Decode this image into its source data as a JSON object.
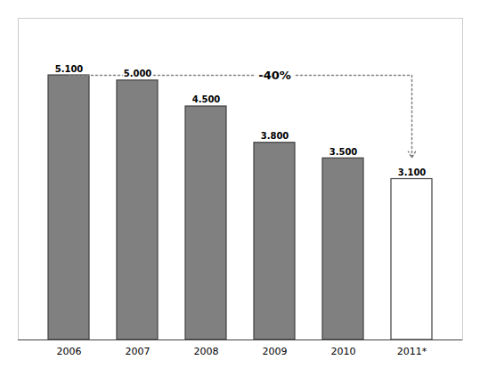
{
  "chart_data": {
    "type": "bar",
    "categories": [
      "2006",
      "2007",
      "2008",
      "2009",
      "2010",
      "2011*"
    ],
    "values": [
      5.1,
      5.0,
      4.5,
      3.8,
      3.5,
      3.1
    ],
    "value_labels": [
      "5.100",
      "5.000",
      "4.500",
      "3.800",
      "3.500",
      "3.100"
    ],
    "data_labels": true,
    "colors": [
      "#808080",
      "#808080",
      "#808080",
      "#808080",
      "#808080",
      "#ffffff"
    ],
    "ylim": [
      0,
      6.2
    ],
    "tick_labels": "x",
    "grid": false,
    "annotations": [
      {
        "text": "-40%",
        "y": 5.1
      }
    ]
  }
}
